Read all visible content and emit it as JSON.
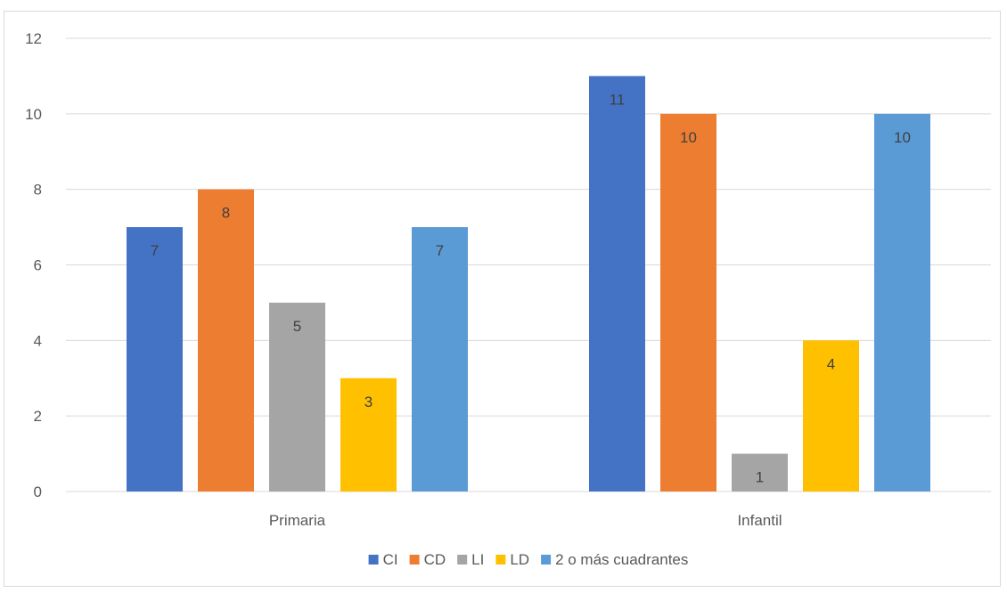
{
  "chart_data": {
    "type": "bar",
    "title": "",
    "xlabel": "",
    "ylabel": "",
    "categories": [
      "Primaria",
      "Infantil"
    ],
    "series": [
      {
        "name": "CI",
        "values": [
          7,
          11
        ],
        "color": "#4472c4"
      },
      {
        "name": "CD",
        "values": [
          8,
          10
        ],
        "color": "#ed7d31"
      },
      {
        "name": "LI",
        "values": [
          5,
          1
        ],
        "color": "#a5a5a5"
      },
      {
        "name": "LD",
        "values": [
          3,
          4
        ],
        "color": "#ffc000"
      },
      {
        "name": "2 o más cuadrantes",
        "values": [
          7,
          10
        ],
        "color": "#5b9bd5"
      }
    ],
    "ylim": [
      0,
      12
    ],
    "yticks": [
      "0",
      "2",
      "4",
      "6",
      "8",
      "10",
      "12"
    ],
    "grid": true,
    "legend_position": "bottom",
    "data_labels": "inside-end"
  }
}
